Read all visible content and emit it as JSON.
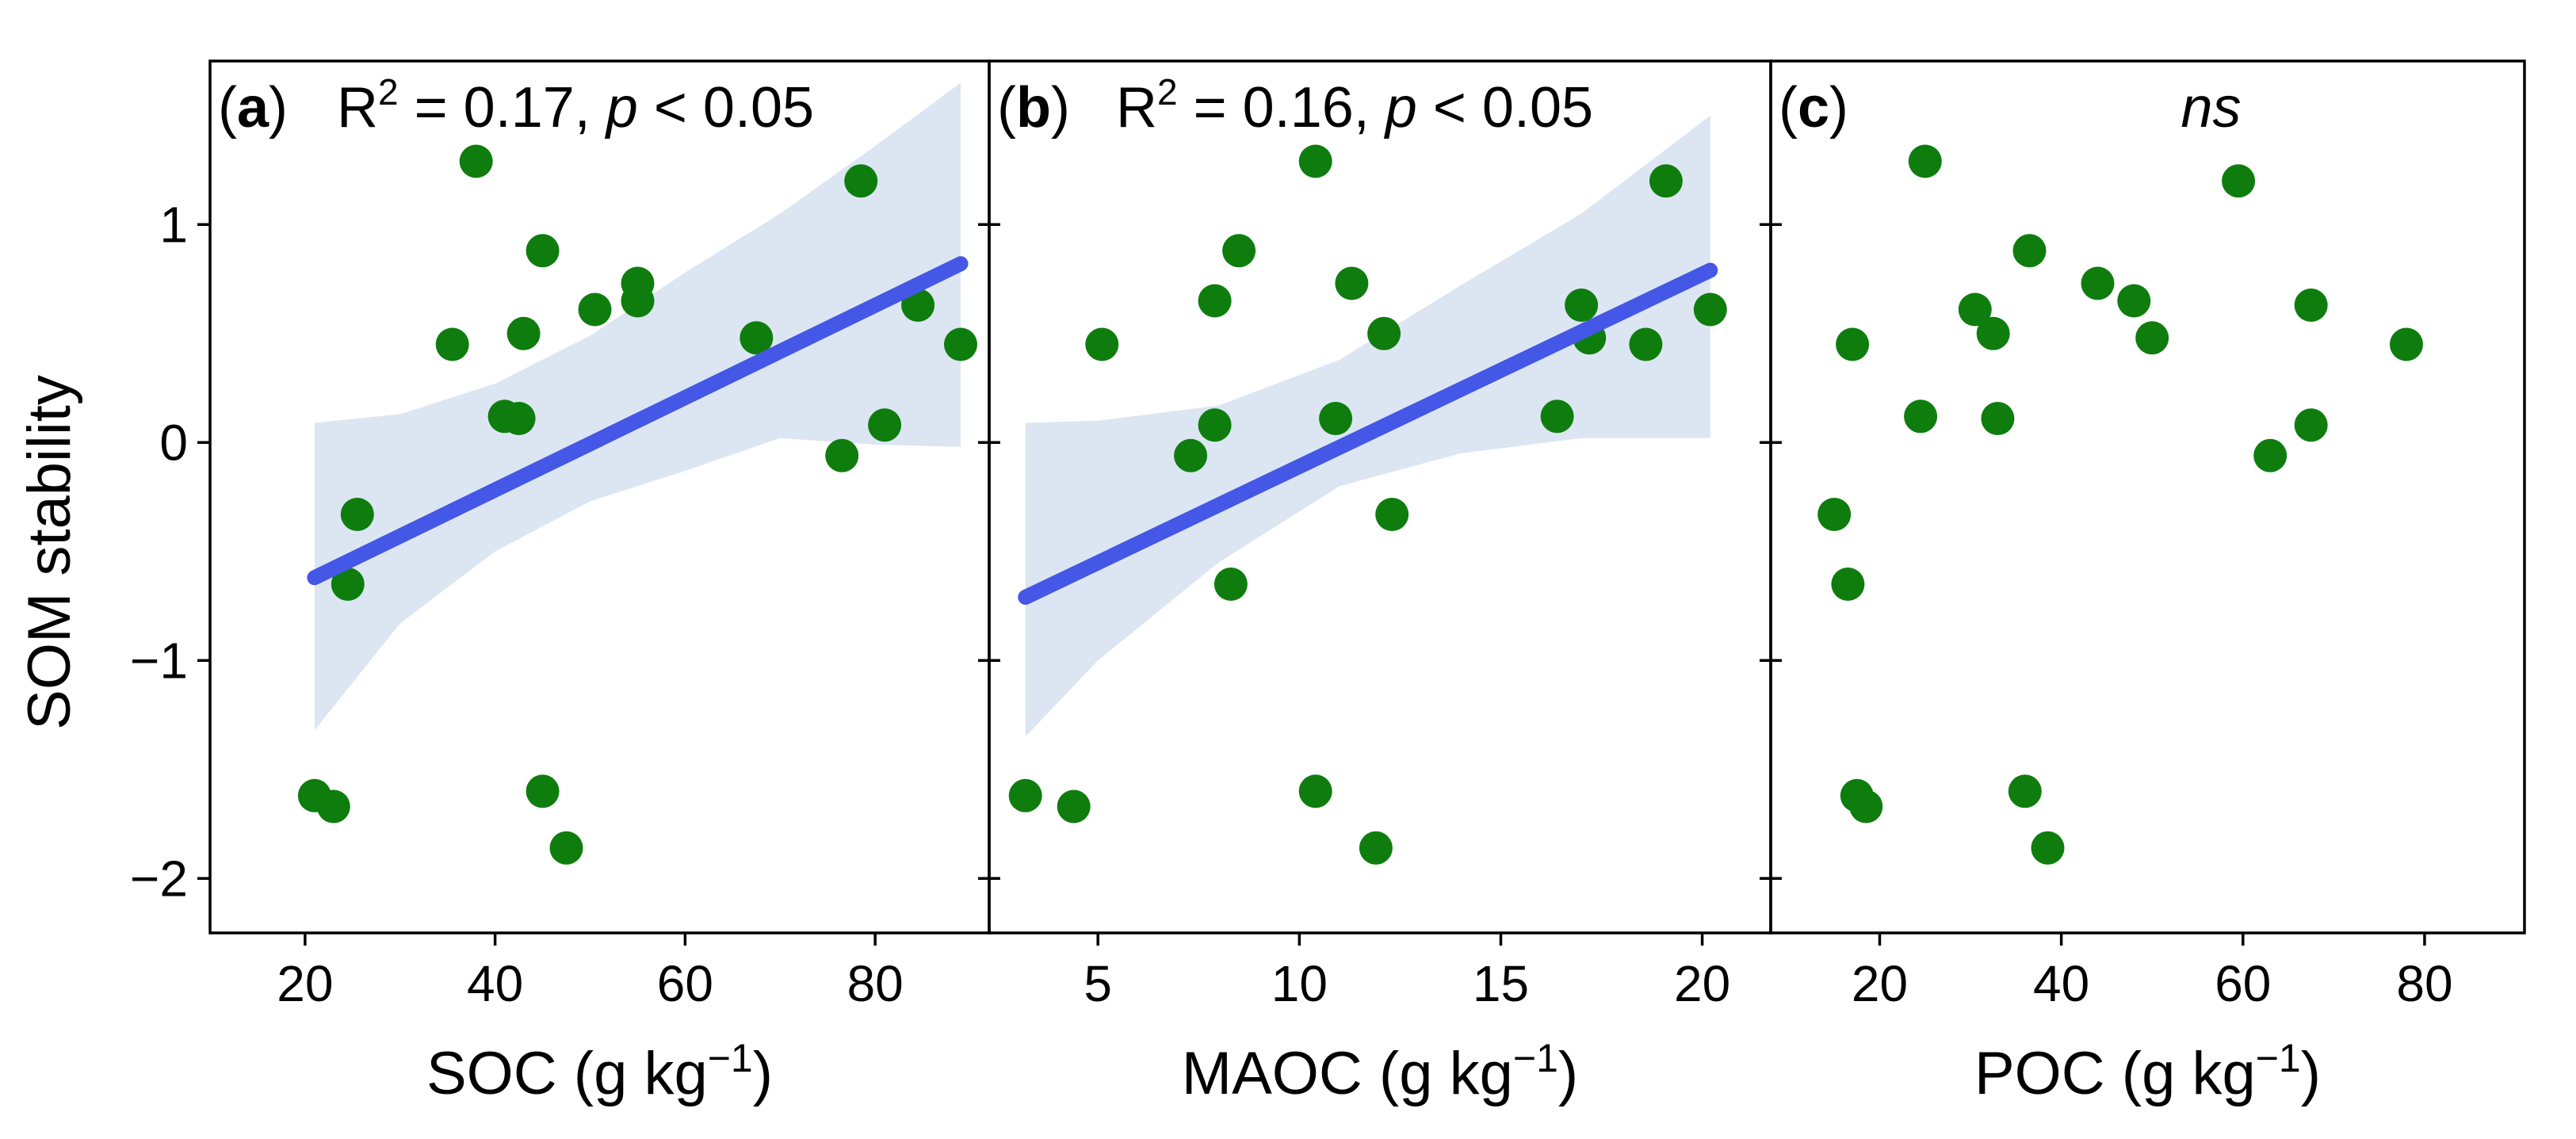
{
  "figure": {
    "ylabel": "SOM stability",
    "yticks": [
      {
        "value": 1,
        "label": "1"
      },
      {
        "value": 0,
        "label": "0"
      },
      {
        "value": -1,
        "label": "−1"
      },
      {
        "value": -2,
        "label": "−2"
      }
    ],
    "colors": {
      "points": "#0e7d0e",
      "fit_line": "#4457e6",
      "ci_band": "#dce6f2",
      "frame": "#000000"
    }
  },
  "chart_data": [
    {
      "type": "scatter",
      "panel": "(a)",
      "panel_letter": "a",
      "annotation": {
        "r_label": "R",
        "r_sup": "2",
        "r_value": " = 0.17, ",
        "p_label": "p",
        "p_value": " < 0.05"
      },
      "xlabel": {
        "text": "SOC (g kg",
        "sup": "−1",
        "close": ")"
      },
      "ylabel": "SOM stability",
      "xlim": [
        10,
        92
      ],
      "ylim": [
        -2.25,
        1.75
      ],
      "xticks": [
        {
          "value": 20,
          "label": "20"
        },
        {
          "value": 40,
          "label": "40"
        },
        {
          "value": 60,
          "label": "60"
        },
        {
          "value": 80,
          "label": "80"
        }
      ],
      "points": [
        {
          "x": 38,
          "y": 1.29
        },
        {
          "x": 78.5,
          "y": 1.2
        },
        {
          "x": 45,
          "y": 0.88
        },
        {
          "x": 55,
          "y": 0.73
        },
        {
          "x": 55,
          "y": 0.65
        },
        {
          "x": 84.5,
          "y": 0.63
        },
        {
          "x": 50.5,
          "y": 0.61
        },
        {
          "x": 43,
          "y": 0.5
        },
        {
          "x": 67.5,
          "y": 0.48
        },
        {
          "x": 35.5,
          "y": 0.45
        },
        {
          "x": 89,
          "y": 0.45
        },
        {
          "x": 41,
          "y": 0.12
        },
        {
          "x": 42.5,
          "y": 0.11
        },
        {
          "x": 81,
          "y": 0.08
        },
        {
          "x": 76.5,
          "y": -0.06
        },
        {
          "x": 25.5,
          "y": -0.33
        },
        {
          "x": 24.5,
          "y": -0.65
        },
        {
          "x": 21,
          "y": -1.62
        },
        {
          "x": 23,
          "y": -1.67
        },
        {
          "x": 45,
          "y": -1.6
        },
        {
          "x": 47.5,
          "y": -1.86
        }
      ],
      "fit": {
        "x": [
          21,
          89
        ],
        "y": [
          -0.62,
          0.82
        ]
      },
      "ci_band": {
        "x": [
          21,
          30,
          40,
          50,
          60,
          70,
          80,
          89
        ],
        "lower": [
          -1.32,
          -0.83,
          -0.5,
          -0.27,
          -0.13,
          0.02,
          -0.01,
          -0.02
        ],
        "upper": [
          0.09,
          0.13,
          0.27,
          0.49,
          0.78,
          1.05,
          1.36,
          1.65
        ]
      }
    },
    {
      "type": "scatter",
      "panel": "(b)",
      "panel_letter": "b",
      "annotation": {
        "r_label": "R",
        "r_sup": "2",
        "r_value": " = 0.16, ",
        "p_label": "p",
        "p_value": " < 0.05"
      },
      "xlabel": {
        "text": "MAOC (g kg",
        "sup": "−1",
        "close": ")"
      },
      "ylabel": "SOM stability",
      "xlim": [
        2.3,
        21.7
      ],
      "ylim": [
        -2.25,
        1.75
      ],
      "xticks": [
        {
          "value": 5,
          "label": "5"
        },
        {
          "value": 10,
          "label": "10"
        },
        {
          "value": 15,
          "label": "15"
        },
        {
          "value": 20,
          "label": "20"
        }
      ],
      "points": [
        {
          "x": 10.4,
          "y": 1.29
        },
        {
          "x": 19.1,
          "y": 1.2
        },
        {
          "x": 8.5,
          "y": 0.88
        },
        {
          "x": 11.3,
          "y": 0.73
        },
        {
          "x": 7.9,
          "y": 0.65
        },
        {
          "x": 17,
          "y": 0.63
        },
        {
          "x": 20.2,
          "y": 0.61
        },
        {
          "x": 12.1,
          "y": 0.5
        },
        {
          "x": 17.2,
          "y": 0.48
        },
        {
          "x": 5.1,
          "y": 0.45
        },
        {
          "x": 18.6,
          "y": 0.45
        },
        {
          "x": 16.4,
          "y": 0.12
        },
        {
          "x": 10.9,
          "y": 0.11
        },
        {
          "x": 7.9,
          "y": 0.08
        },
        {
          "x": 7.3,
          "y": -0.06
        },
        {
          "x": 12.3,
          "y": -0.33
        },
        {
          "x": 8.3,
          "y": -0.65
        },
        {
          "x": 3.2,
          "y": -1.62
        },
        {
          "x": 4.4,
          "y": -1.67
        },
        {
          "x": 10.4,
          "y": -1.6
        },
        {
          "x": 11.9,
          "y": -1.86
        }
      ],
      "fit": {
        "x": [
          3.2,
          20.2
        ],
        "y": [
          -0.71,
          0.79
        ]
      },
      "ci_band": {
        "x": [
          3.2,
          5,
          8,
          11,
          14,
          17,
          20.2
        ],
        "lower": [
          -1.35,
          -1.0,
          -0.55,
          -0.2,
          -0.05,
          0.02,
          0.02
        ],
        "upper": [
          0.09,
          0.1,
          0.17,
          0.38,
          0.72,
          1.05,
          1.5
        ]
      }
    },
    {
      "type": "scatter",
      "panel": "(c)",
      "panel_letter": "c",
      "annotation": {
        "ns": "ns"
      },
      "xlabel": {
        "text": "POC (g kg",
        "sup": "−1",
        "close": ")"
      },
      "ylabel": "SOM stability",
      "xlim": [
        8,
        91
      ],
      "ylim": [
        -2.25,
        1.75
      ],
      "xticks": [
        {
          "value": 20,
          "label": "20"
        },
        {
          "value": 40,
          "label": "40"
        },
        {
          "value": 60,
          "label": "60"
        },
        {
          "value": 80,
          "label": "80"
        }
      ],
      "points": [
        {
          "x": 25,
          "y": 1.29
        },
        {
          "x": 59.5,
          "y": 1.2
        },
        {
          "x": 36.5,
          "y": 0.88
        },
        {
          "x": 44,
          "y": 0.73
        },
        {
          "x": 48,
          "y": 0.65
        },
        {
          "x": 67.5,
          "y": 0.63
        },
        {
          "x": 30.5,
          "y": 0.61
        },
        {
          "x": 32.5,
          "y": 0.5
        },
        {
          "x": 50,
          "y": 0.48
        },
        {
          "x": 17,
          "y": 0.45
        },
        {
          "x": 78,
          "y": 0.45
        },
        {
          "x": 24.5,
          "y": 0.12
        },
        {
          "x": 33,
          "y": 0.11
        },
        {
          "x": 67.5,
          "y": 0.08
        },
        {
          "x": 63,
          "y": -0.06
        },
        {
          "x": 15,
          "y": -0.33
        },
        {
          "x": 16.5,
          "y": -0.65
        },
        {
          "x": 17.5,
          "y": -1.62
        },
        {
          "x": 18.5,
          "y": -1.67
        },
        {
          "x": 36,
          "y": -1.6
        },
        {
          "x": 38.5,
          "y": -1.86
        }
      ]
    }
  ]
}
